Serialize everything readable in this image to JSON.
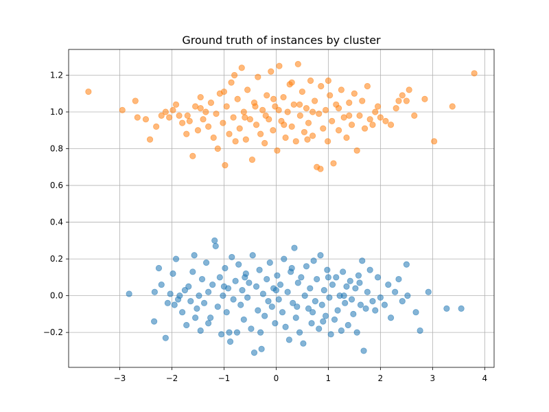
{
  "chart_data": {
    "type": "scatter",
    "title": "Ground truth of instances by cluster",
    "xlabel": "",
    "ylabel": "",
    "xlim": [
      -3.98,
      4.18
    ],
    "ylim": [
      -0.39,
      1.34
    ],
    "xticks": [
      -3,
      -2,
      -1,
      0,
      1,
      2,
      3,
      4
    ],
    "xtick_labels": [
      "−3",
      "−2",
      "−1",
      "0",
      "1",
      "2",
      "3",
      "4"
    ],
    "yticks": [
      -0.2,
      0.0,
      0.2,
      0.4,
      0.6,
      0.8,
      1.0,
      1.2
    ],
    "ytick_labels": [
      "−0.2",
      "0.0",
      "0.2",
      "0.4",
      "0.6",
      "0.8",
      "1.0",
      "1.2"
    ],
    "grid": true,
    "legend": "none",
    "marker_alpha": 0.55,
    "series": [
      {
        "color": "#1f77b4",
        "points": [
          [
            -2.82,
            0.01
          ],
          [
            -2.34,
            -0.14
          ],
          [
            -2.33,
            0.02
          ],
          [
            -2.25,
            0.15
          ],
          [
            -2.2,
            0.06
          ],
          [
            -2.12,
            -0.23
          ],
          [
            -2.08,
            -0.04
          ],
          [
            -2.03,
            0.01
          ],
          [
            -1.98,
            0.12
          ],
          [
            -1.95,
            -0.05
          ],
          [
            -1.92,
            0.2
          ],
          [
            -1.88,
            -0.02
          ],
          [
            -1.85,
            0.0
          ],
          [
            -1.8,
            -0.09
          ],
          [
            -1.75,
            0.03
          ],
          [
            -1.72,
            -0.16
          ],
          [
            -1.68,
            0.05
          ],
          [
            -1.64,
            -0.03
          ],
          [
            -1.6,
            0.13
          ],
          [
            -1.57,
            0.22
          ],
          [
            -1.52,
            -0.07
          ],
          [
            -1.48,
            0.0
          ],
          [
            -1.45,
            -0.19
          ],
          [
            -1.42,
            0.09
          ],
          [
            -1.38,
            -0.04
          ],
          [
            -1.34,
            0.18
          ],
          [
            -1.3,
            0.02
          ],
          [
            -1.26,
            -0.12
          ],
          [
            -1.22,
            0.06
          ],
          [
            -1.18,
            0.3
          ],
          [
            -1.16,
            0.27
          ],
          [
            -1.12,
            -0.06
          ],
          [
            -1.08,
            0.1
          ],
          [
            -1.05,
            -0.21
          ],
          [
            -1.02,
            0.0
          ],
          [
            -0.98,
            0.15
          ],
          [
            -0.95,
            -0.09
          ],
          [
            -0.92,
            0.04
          ],
          [
            -0.88,
            -0.25
          ],
          [
            -0.85,
            0.21
          ],
          [
            -0.82,
            -0.02
          ],
          [
            -0.78,
            0.08
          ],
          [
            -0.75,
            -0.2
          ],
          [
            -0.72,
            0.17
          ],
          [
            -0.68,
            -0.05
          ],
          [
            -0.65,
            0.03
          ],
          [
            -0.62,
            -0.13
          ],
          [
            -0.58,
            0.12
          ],
          [
            -0.55,
            -0.01
          ],
          [
            -0.52,
            0.07
          ],
          [
            -0.48,
            -0.18
          ],
          [
            -0.45,
            0.22
          ],
          [
            -0.42,
            -0.31
          ],
          [
            -0.38,
            0.05
          ],
          [
            -0.35,
            -0.08
          ],
          [
            -0.32,
            0.14
          ],
          [
            -0.28,
            -0.29
          ],
          [
            -0.25,
            0.01
          ],
          [
            -0.22,
            -0.11
          ],
          [
            -0.18,
            0.09
          ],
          [
            -0.15,
            -0.03
          ],
          [
            -0.12,
            0.18
          ],
          [
            -0.08,
            -0.06
          ],
          [
            -0.05,
            0.04
          ],
          [
            -0.02,
            -0.15
          ],
          [
            0.02,
            0.11
          ],
          [
            0.05,
            -0.02
          ],
          [
            0.08,
            0.06
          ],
          [
            0.12,
            -0.09
          ],
          [
            0.15,
            0.2
          ],
          [
            0.18,
            -0.17
          ],
          [
            0.22,
            0.02
          ],
          [
            0.25,
            -0.24
          ],
          [
            0.28,
            0.13
          ],
          [
            0.32,
            -0.04
          ],
          [
            0.35,
            0.26
          ],
          [
            0.38,
            -0.12
          ],
          [
            0.42,
            0.07
          ],
          [
            0.45,
            -0.2
          ],
          [
            0.48,
            0.1
          ],
          [
            0.52,
            -0.26
          ],
          [
            0.55,
            0.0
          ],
          [
            0.58,
            0.16
          ],
          [
            0.62,
            -0.07
          ],
          [
            0.65,
            0.04
          ],
          [
            0.68,
            -0.15
          ],
          [
            0.72,
            0.19
          ],
          [
            0.75,
            -0.03
          ],
          [
            0.78,
            0.09
          ],
          [
            0.82,
            -0.18
          ],
          [
            0.85,
            0.22
          ],
          [
            0.88,
            -0.05
          ],
          [
            0.92,
            0.03
          ],
          [
            0.95,
            -0.11
          ],
          [
            0.98,
            0.14
          ],
          [
            1.02,
            -0.01
          ],
          [
            1.05,
            -0.21
          ],
          [
            1.08,
            0.06
          ],
          [
            1.12,
            -0.13
          ],
          [
            1.15,
            0.1
          ],
          [
            1.18,
            -0.08
          ],
          [
            1.22,
            0.0
          ],
          [
            1.25,
            -0.19
          ],
          [
            1.28,
            0.13
          ],
          [
            1.32,
            -0.04
          ],
          [
            1.35,
            0.05
          ],
          [
            1.38,
            -0.16
          ],
          [
            1.42,
            0.08
          ],
          [
            1.45,
            -0.02
          ],
          [
            1.48,
            -0.1
          ],
          [
            1.52,
            0.04
          ],
          [
            1.55,
            -0.2
          ],
          [
            1.58,
            0.11
          ],
          [
            1.62,
            -0.05
          ],
          [
            1.65,
            0.19
          ],
          [
            1.68,
            -0.3
          ],
          [
            1.72,
            -0.07
          ],
          [
            1.75,
            0.02
          ],
          [
            1.8,
            0.14
          ],
          [
            1.85,
            -0.03
          ],
          [
            1.9,
            -0.08
          ],
          [
            1.95,
            0.1
          ],
          [
            2.0,
            -0.01
          ],
          [
            2.08,
            -0.05
          ],
          [
            2.15,
            0.06
          ],
          [
            2.2,
            -0.12
          ],
          [
            2.28,
            0.02
          ],
          [
            2.35,
            0.09
          ],
          [
            2.42,
            -0.03
          ],
          [
            2.5,
            0.17
          ],
          [
            2.52,
            0.0
          ],
          [
            2.68,
            -0.09
          ],
          [
            2.76,
            -0.19
          ],
          [
            2.92,
            0.02
          ],
          [
            3.27,
            -0.07
          ],
          [
            3.55,
            -0.07
          ],
          [
            -1.55,
            -0.12
          ],
          [
            -0.9,
            -0.2
          ],
          [
            0.4,
            -0.06
          ],
          [
            1.0,
            0.1
          ],
          [
            -0.3,
            -0.2
          ],
          [
            0.7,
            -0.09
          ],
          [
            1.3,
            0.0
          ],
          [
            -1.0,
            0.05
          ],
          [
            0.0,
            0.03
          ],
          [
            -0.6,
            0.1
          ],
          [
            0.3,
            0.15
          ],
          [
            0.9,
            -0.14
          ],
          [
            -1.3,
            -0.15
          ],
          [
            1.6,
            0.07
          ]
        ]
      },
      {
        "color": "#ff7f0e",
        "points": [
          [
            -3.6,
            1.11
          ],
          [
            -2.95,
            1.01
          ],
          [
            -2.7,
            1.06
          ],
          [
            -2.66,
            0.97
          ],
          [
            -2.5,
            0.96
          ],
          [
            -2.42,
            0.85
          ],
          [
            -2.3,
            0.92
          ],
          [
            -2.2,
            0.98
          ],
          [
            -2.12,
            1.0
          ],
          [
            -2.05,
            0.97
          ],
          [
            -1.98,
            1.01
          ],
          [
            -1.92,
            1.04
          ],
          [
            -1.86,
            0.98
          ],
          [
            -1.8,
            0.94
          ],
          [
            -1.72,
            0.88
          ],
          [
            -1.66,
            0.95
          ],
          [
            -1.6,
            0.76
          ],
          [
            -1.55,
            1.03
          ],
          [
            -1.5,
            0.9
          ],
          [
            -1.45,
            1.08
          ],
          [
            -1.4,
            0.96
          ],
          [
            -1.35,
            1.0
          ],
          [
            -1.3,
            0.92
          ],
          [
            -1.25,
            1.05
          ],
          [
            -1.2,
            0.86
          ],
          [
            -1.15,
            0.99
          ],
          [
            -1.12,
            0.8
          ],
          [
            -1.08,
            1.1
          ],
          [
            -1.02,
            0.94
          ],
          [
            -0.98,
            0.71
          ],
          [
            -0.95,
            1.03
          ],
          [
            -0.9,
            0.88
          ],
          [
            -0.86,
            1.16
          ],
          [
            -0.82,
            0.97
          ],
          [
            -0.78,
            0.84
          ],
          [
            -0.74,
            1.07
          ],
          [
            -0.7,
            0.91
          ],
          [
            -0.66,
            1.24
          ],
          [
            -0.62,
            1.0
          ],
          [
            -0.58,
            0.85
          ],
          [
            -0.55,
            1.12
          ],
          [
            -0.5,
            0.96
          ],
          [
            -0.46,
            0.74
          ],
          [
            -0.42,
            1.05
          ],
          [
            -0.38,
            0.93
          ],
          [
            -0.35,
            1.19
          ],
          [
            -0.3,
            0.88
          ],
          [
            -0.26,
            1.01
          ],
          [
            -0.22,
            0.83
          ],
          [
            -0.18,
            1.09
          ],
          [
            -0.14,
            0.96
          ],
          [
            -0.1,
            1.22
          ],
          [
            -0.06,
            0.9
          ],
          [
            -0.02,
            1.03
          ],
          [
            0.02,
            0.79
          ],
          [
            0.06,
            1.25
          ],
          [
            0.1,
            0.95
          ],
          [
            0.14,
            1.08
          ],
          [
            0.18,
            0.86
          ],
          [
            0.22,
            1.0
          ],
          [
            0.26,
            1.15
          ],
          [
            0.3,
            0.92
          ],
          [
            0.34,
            1.04
          ],
          [
            0.38,
            0.84
          ],
          [
            0.42,
            1.26
          ],
          [
            0.46,
            0.98
          ],
          [
            0.5,
            1.11
          ],
          [
            0.54,
            0.89
          ],
          [
            0.58,
            1.02
          ],
          [
            0.62,
            0.94
          ],
          [
            0.66,
            1.17
          ],
          [
            0.7,
            0.87
          ],
          [
            0.74,
            1.06
          ],
          [
            0.78,
            0.7
          ],
          [
            0.82,
            0.99
          ],
          [
            0.86,
            1.14
          ],
          [
            0.9,
            0.91
          ],
          [
            0.95,
            1.01
          ],
          [
            0.99,
            0.84
          ],
          [
            1.03,
            1.09
          ],
          [
            1.07,
            0.95
          ],
          [
            1.1,
            0.72
          ],
          [
            1.15,
            1.04
          ],
          [
            1.2,
            0.9
          ],
          [
            1.25,
            1.12
          ],
          [
            1.3,
            0.97
          ],
          [
            1.35,
            0.86
          ],
          [
            1.4,
            1.05
          ],
          [
            1.45,
            0.93
          ],
          [
            1.5,
            1.1
          ],
          [
            1.55,
            0.79
          ],
          [
            1.6,
            0.98
          ],
          [
            1.65,
            1.06
          ],
          [
            1.7,
            0.91
          ],
          [
            1.75,
            1.14
          ],
          [
            1.8,
            0.96
          ],
          [
            1.85,
            0.93
          ],
          [
            1.9,
            1.0
          ],
          [
            1.95,
            1.03
          ],
          [
            2.0,
            0.97
          ],
          [
            2.1,
            0.95
          ],
          [
            2.2,
            0.93
          ],
          [
            2.3,
            1.02
          ],
          [
            2.35,
            1.06
          ],
          [
            2.42,
            1.09
          ],
          [
            2.5,
            1.06
          ],
          [
            2.55,
            1.12
          ],
          [
            2.65,
            0.98
          ],
          [
            2.85,
            1.07
          ],
          [
            3.03,
            0.84
          ],
          [
            3.38,
            1.03
          ],
          [
            3.8,
            1.21
          ],
          [
            -0.8,
            1.2
          ],
          [
            0.3,
            1.16
          ],
          [
            1.0,
            1.17
          ],
          [
            -1.45,
            1.02
          ],
          [
            0.6,
            0.85
          ],
          [
            -0.2,
            0.98
          ],
          [
            0.15,
            0.93
          ],
          [
            -0.6,
            0.97
          ],
          [
            0.85,
            0.69
          ],
          [
            -0.05,
            1.07
          ],
          [
            1.2,
            1.02
          ],
          [
            -1.7,
            0.98
          ],
          [
            0.45,
            1.04
          ],
          [
            -1.0,
            1.11
          ],
          [
            0.05,
            1.01
          ],
          [
            0.7,
            1.0
          ],
          [
            -0.4,
            1.03
          ],
          [
            1.4,
            0.98
          ]
        ]
      }
    ]
  }
}
